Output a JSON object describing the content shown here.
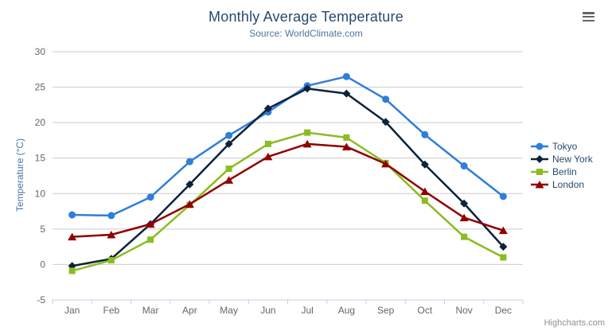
{
  "header": {
    "title": "Monthly Average Temperature",
    "subtitle": "Source: WorldClimate.com"
  },
  "chart_data": {
    "type": "line",
    "title": "Monthly Average Temperature",
    "subtitle": "Source: WorldClimate.com",
    "categories": [
      "Jan",
      "Feb",
      "Mar",
      "Apr",
      "May",
      "Jun",
      "Jul",
      "Aug",
      "Sep",
      "Oct",
      "Nov",
      "Dec"
    ],
    "series": [
      {
        "name": "Tokyo",
        "color": "#2F7ED8",
        "marker": "circle",
        "values": [
          7.0,
          6.9,
          9.5,
          14.5,
          18.2,
          21.5,
          25.2,
          26.5,
          23.3,
          18.3,
          13.9,
          9.6
        ]
      },
      {
        "name": "New York",
        "color": "#0D233A",
        "marker": "diamond",
        "values": [
          -0.2,
          0.8,
          5.7,
          11.3,
          17.0,
          22.0,
          24.8,
          24.1,
          20.1,
          14.1,
          8.6,
          2.5
        ]
      },
      {
        "name": "Berlin",
        "color": "#8BBC21",
        "marker": "square",
        "values": [
          -0.9,
          0.6,
          3.5,
          8.4,
          13.5,
          17.0,
          18.6,
          17.9,
          14.3,
          9.0,
          3.9,
          1.0
        ]
      },
      {
        "name": "London",
        "color": "#910000",
        "marker": "triangle",
        "values": [
          3.9,
          4.2,
          5.7,
          8.5,
          11.9,
          15.2,
          17.0,
          16.6,
          14.2,
          10.3,
          6.6,
          4.8
        ]
      }
    ],
    "xlabel": "",
    "ylabel": "Temperature (°C)",
    "ylim": [
      -5,
      30
    ],
    "yticks": [
      -5,
      0,
      5,
      10,
      15,
      20,
      25,
      30
    ],
    "grid": true,
    "legend_position": "right"
  },
  "colors": {
    "title": "#274B6D",
    "subtitle": "#4D759E",
    "axis_label": "#666666",
    "axis_line": "#C0D0E0",
    "gridline": "#CCCCCC",
    "legend_text": "#274B6D",
    "credits": "#909090"
  },
  "credits": {
    "label": "Highcharts.com"
  },
  "export_menu": {
    "icon": "hamburger-icon"
  }
}
